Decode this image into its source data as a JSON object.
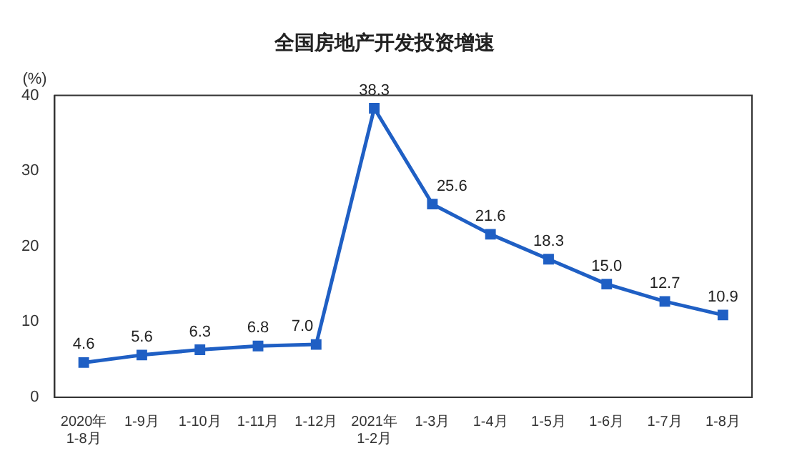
{
  "chart_data": {
    "type": "line",
    "title": "全国房地产开发投资增速",
    "ylabel": "(%)",
    "categories": [
      "2020年\n1-8月",
      "1-9月",
      "1-10月",
      "1-11月",
      "1-12月",
      "2021年\n1-2月",
      "1-3月",
      "1-4月",
      "1-5月",
      "1-6月",
      "1-7月",
      "1-8月"
    ],
    "series": [
      {
        "color": "#1f5fc4",
        "values": [
          4.6,
          5.6,
          6.3,
          6.8,
          7.0,
          38.3,
          25.6,
          21.6,
          18.3,
          15.0,
          12.7,
          10.9
        ],
        "value_labels": [
          "4.6",
          "5.6",
          "6.3",
          "6.8",
          "7.0",
          "38.3",
          "25.6",
          "21.6",
          "18.3",
          "15.0",
          "12.7",
          "10.9"
        ]
      }
    ],
    "ylim": [
      0,
      40
    ],
    "yticks": [
      0,
      10,
      20,
      30,
      40
    ],
    "grid": false,
    "legend": false,
    "marker": "square",
    "line_style": "solid"
  }
}
